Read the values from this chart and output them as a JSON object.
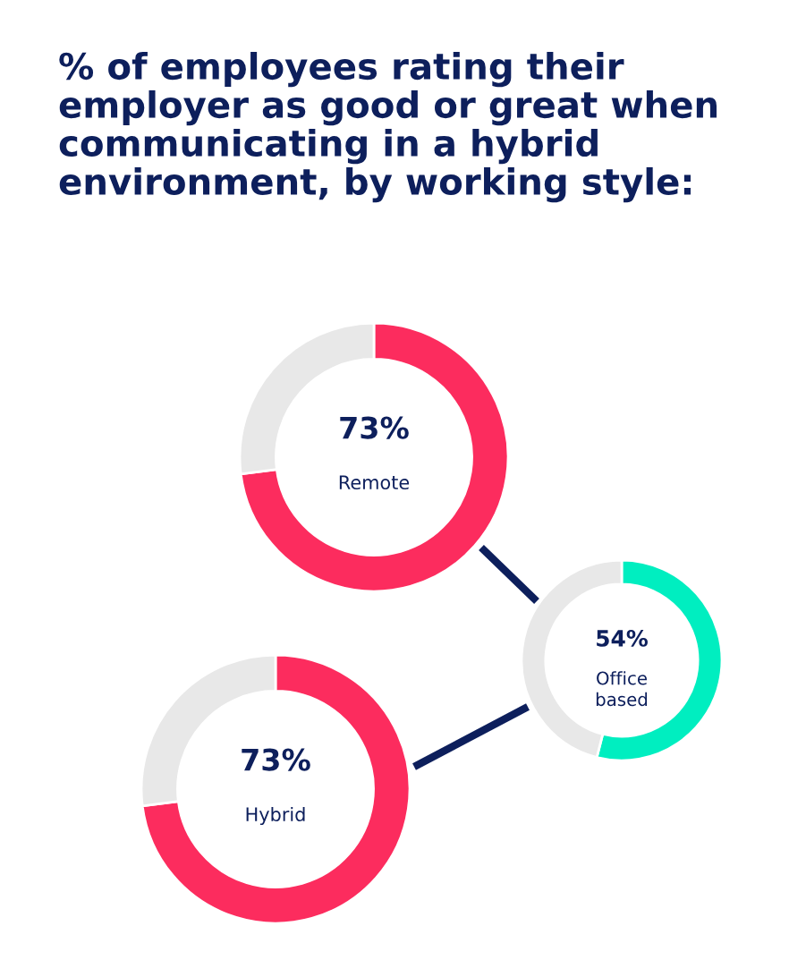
{
  "chart_data": [
    {
      "type": "donut",
      "title": "% of employees rating their\nemployer as good or great when\ncommunicating in a hybrid\nenvironment, by working style:",
      "categories": [
        "Remote",
        null
      ],
      "values": [
        73,
        27
      ],
      "colors": [
        "#fc2c5e",
        "#e8e8e8"
      ],
      "value_labels": [
        "73%",
        null
      ]
    },
    {
      "type": "donut",
      "categories": [
        "Office\nbased",
        null
      ],
      "values": [
        54,
        46
      ],
      "colors": [
        "#00eec0",
        "#e8e8e8"
      ],
      "value_labels": [
        "54%",
        null
      ]
    },
    {
      "type": "donut",
      "categories": [
        "Hybrid",
        null
      ],
      "values": [
        73,
        27
      ],
      "colors": [
        "#fc2c5e",
        "#e8e8e8"
      ],
      "value_labels": [
        "73%",
        null
      ]
    }
  ]
}
